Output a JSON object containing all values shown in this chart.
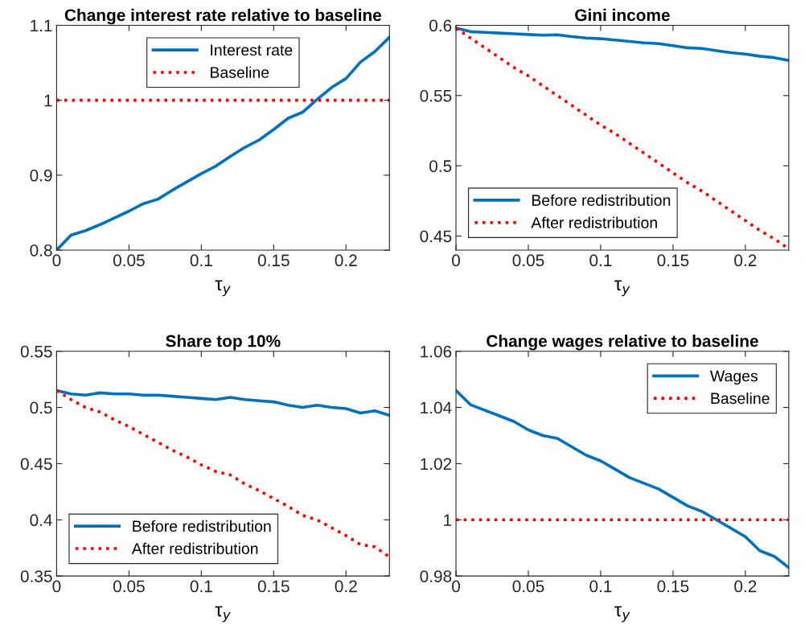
{
  "chart_data": [
    {
      "type": "line",
      "title": "Change interest rate relative to baseline",
      "xlabel": "τ$_{y}$",
      "x": [
        0,
        0.01,
        0.02,
        0.03,
        0.04,
        0.05,
        0.06,
        0.07,
        0.08,
        0.09,
        0.1,
        0.11,
        0.12,
        0.13,
        0.14,
        0.15,
        0.16,
        0.17,
        0.18,
        0.19,
        0.2,
        0.21,
        0.22,
        0.23
      ],
      "series": [
        {
          "name": "Interest rate",
          "color": "#0072bd",
          "line_style": "solid",
          "values": [
            0.8,
            0.82,
            0.826,
            0.834,
            0.843,
            0.852,
            0.862,
            0.868,
            0.88,
            0.891,
            0.902,
            0.912,
            0.925,
            0.937,
            0.947,
            0.961,
            0.976,
            0.984,
            1.001,
            1.017,
            1.029,
            1.051,
            1.065,
            1.084
          ]
        },
        {
          "name": "Baseline",
          "color": "#ff0000",
          "line_style": "dotted",
          "values": [
            1,
            1,
            1,
            1,
            1,
            1,
            1,
            1,
            1,
            1,
            1,
            1,
            1,
            1,
            1,
            1,
            1,
            1,
            1,
            1,
            1,
            1,
            1,
            1
          ]
        }
      ],
      "xlim": [
        0,
        0.23
      ],
      "xticks": [
        0,
        0.05,
        0.1,
        0.15,
        0.2
      ],
      "ylim": [
        0.8,
        1.1
      ],
      "yticks": [
        0.8,
        0.9,
        1,
        1.1
      ],
      "legend": "top",
      "grid": false
    },
    {
      "type": "line",
      "title": "Gini income",
      "xlabel": "τ$_{y}$",
      "x": [
        0,
        0.01,
        0.02,
        0.03,
        0.04,
        0.05,
        0.06,
        0.07,
        0.08,
        0.09,
        0.1,
        0.11,
        0.12,
        0.13,
        0.14,
        0.15,
        0.16,
        0.17,
        0.18,
        0.19,
        0.2,
        0.21,
        0.22,
        0.23
      ],
      "series": [
        {
          "name": "Before redistribution",
          "color": "#0072bd",
          "line_style": "solid",
          "values": [
            0.598,
            0.5955,
            0.595,
            0.5945,
            0.594,
            0.5935,
            0.593,
            0.5933,
            0.592,
            0.591,
            0.5905,
            0.5895,
            0.5885,
            0.5875,
            0.587,
            0.5855,
            0.584,
            0.5835,
            0.582,
            0.5805,
            0.5795,
            0.578,
            0.577,
            0.575
          ]
        },
        {
          "name": "After redistribution",
          "color": "#ff0000",
          "line_style": "dotted",
          "values": [
            0.598,
            0.591,
            0.584,
            0.577,
            0.57,
            0.564,
            0.557,
            0.55,
            0.543,
            0.536,
            0.529,
            0.523,
            0.516,
            0.509,
            0.502,
            0.495,
            0.488,
            0.482,
            0.475,
            0.468,
            0.461,
            0.454,
            0.448,
            0.441
          ]
        }
      ],
      "xlim": [
        0,
        0.23
      ],
      "xticks": [
        0,
        0.05,
        0.1,
        0.15,
        0.2
      ],
      "ylim": [
        0.44,
        0.6
      ],
      "yticks": [
        0.45,
        0.5,
        0.55,
        0.6
      ],
      "legend": "bottom left",
      "grid": false
    },
    {
      "type": "line",
      "title": "Share top 10%",
      "xlabel": "τ$_{y}$",
      "x": [
        0,
        0.01,
        0.02,
        0.03,
        0.04,
        0.05,
        0.06,
        0.07,
        0.08,
        0.09,
        0.1,
        0.11,
        0.12,
        0.13,
        0.14,
        0.15,
        0.16,
        0.17,
        0.18,
        0.19,
        0.2,
        0.21,
        0.22,
        0.23
      ],
      "series": [
        {
          "name": "Before redistribution",
          "color": "#0072bd",
          "line_style": "solid",
          "values": [
            0.515,
            0.512,
            0.511,
            0.513,
            0.512,
            0.512,
            0.511,
            0.511,
            0.51,
            0.509,
            0.508,
            0.507,
            0.509,
            0.507,
            0.506,
            0.505,
            0.502,
            0.5,
            0.502,
            0.5,
            0.499,
            0.495,
            0.497,
            0.493
          ]
        },
        {
          "name": "After redistribution",
          "color": "#ff0000",
          "line_style": "dotted",
          "values": [
            0.515,
            0.507,
            0.5,
            0.496,
            0.489,
            0.483,
            0.476,
            0.469,
            0.462,
            0.456,
            0.449,
            0.443,
            0.44,
            0.432,
            0.426,
            0.419,
            0.412,
            0.404,
            0.4,
            0.393,
            0.386,
            0.378,
            0.376,
            0.367
          ]
        }
      ],
      "xlim": [
        0,
        0.23
      ],
      "xticks": [
        0,
        0.05,
        0.1,
        0.15,
        0.2
      ],
      "ylim": [
        0.35,
        0.55
      ],
      "yticks": [
        0.35,
        0.4,
        0.45,
        0.5,
        0.55
      ],
      "legend": "bottom left",
      "grid": false
    },
    {
      "type": "line",
      "title": "Change wages relative to baseline",
      "xlabel": "τ$_{y}$",
      "x": [
        0,
        0.01,
        0.02,
        0.03,
        0.04,
        0.05,
        0.06,
        0.07,
        0.08,
        0.09,
        0.1,
        0.11,
        0.12,
        0.13,
        0.14,
        0.15,
        0.16,
        0.17,
        0.18,
        0.19,
        0.2,
        0.21,
        0.22,
        0.23
      ],
      "series": [
        {
          "name": "Wages",
          "color": "#0072bd",
          "line_style": "solid",
          "values": [
            1.046,
            1.041,
            1.039,
            1.037,
            1.035,
            1.032,
            1.03,
            1.029,
            1.026,
            1.023,
            1.021,
            1.018,
            1.015,
            1.013,
            1.011,
            1.008,
            1.005,
            1.003,
            1.0,
            0.997,
            0.994,
            0.989,
            0.987,
            0.983
          ]
        },
        {
          "name": "Baseline",
          "color": "#ff0000",
          "line_style": "dotted",
          "values": [
            1,
            1,
            1,
            1,
            1,
            1,
            1,
            1,
            1,
            1,
            1,
            1,
            1,
            1,
            1,
            1,
            1,
            1,
            1,
            1,
            1,
            1,
            1,
            1
          ]
        }
      ],
      "xlim": [
        0,
        0.23
      ],
      "xticks": [
        0,
        0.05,
        0.1,
        0.15,
        0.2
      ],
      "ylim": [
        0.98,
        1.06
      ],
      "yticks": [
        0.98,
        1,
        1.02,
        1.04,
        1.06
      ],
      "legend": "top right",
      "grid": false
    }
  ]
}
